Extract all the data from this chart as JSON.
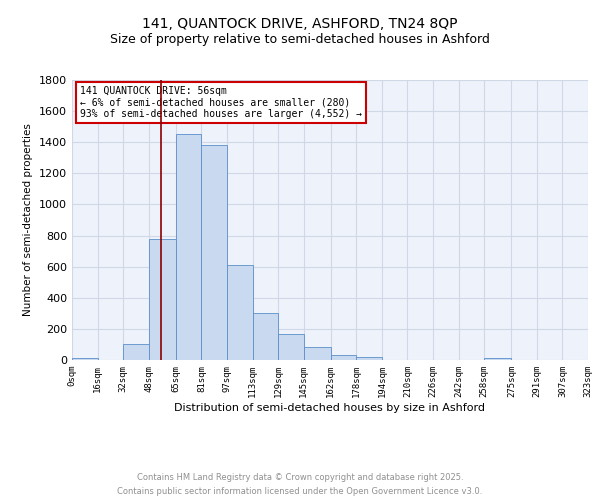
{
  "title1": "141, QUANTOCK DRIVE, ASHFORD, TN24 8QP",
  "title2": "Size of property relative to semi-detached houses in Ashford",
  "xlabel": "Distribution of semi-detached houses by size in Ashford",
  "ylabel": "Number of semi-detached properties",
  "annotation_title": "141 QUANTOCK DRIVE: 56sqm",
  "annotation_line1": "← 6% of semi-detached houses are smaller (280)",
  "annotation_line2": "93% of semi-detached houses are larger (4,552) →",
  "footnote1": "Contains HM Land Registry data © Crown copyright and database right 2025.",
  "footnote2": "Contains public sector information licensed under the Open Government Licence v3.0.",
  "bar_edges": [
    0,
    16,
    32,
    48,
    65,
    81,
    97,
    113,
    129,
    145,
    162,
    178,
    194,
    210,
    226,
    242,
    258,
    275,
    291,
    307,
    323
  ],
  "bar_heights": [
    15,
    0,
    100,
    775,
    1450,
    1380,
    610,
    300,
    170,
    85,
    30,
    18,
    0,
    0,
    0,
    0,
    15,
    0,
    0,
    0
  ],
  "bar_color": "#c9d9f0",
  "bar_edge_color": "#5b8fc9",
  "vline_x": 56,
  "vline_color": "#8b0000",
  "ylim": [
    0,
    1800
  ],
  "xlim": [
    0,
    323
  ],
  "tick_labels": [
    "0sqm",
    "16sqm",
    "32sqm",
    "48sqm",
    "65sqm",
    "81sqm",
    "97sqm",
    "113sqm",
    "129sqm",
    "145sqm",
    "162sqm",
    "178sqm",
    "194sqm",
    "210sqm",
    "226sqm",
    "242sqm",
    "258sqm",
    "275sqm",
    "291sqm",
    "307sqm",
    "323sqm"
  ],
  "tick_positions": [
    0,
    16,
    32,
    48,
    65,
    81,
    97,
    113,
    129,
    145,
    162,
    178,
    194,
    210,
    226,
    242,
    258,
    275,
    291,
    307,
    323
  ],
  "yticks": [
    0,
    200,
    400,
    600,
    800,
    1000,
    1200,
    1400,
    1600,
    1800
  ],
  "grid_color": "#d0d8e8",
  "bg_color": "#eef2fb",
  "annotation_box_color": "#ffffff",
  "annotation_box_edge": "#cc0000",
  "title_fontsize": 10,
  "subtitle_fontsize": 9,
  "footnote_color": "#909090",
  "footnote_fontsize": 6
}
